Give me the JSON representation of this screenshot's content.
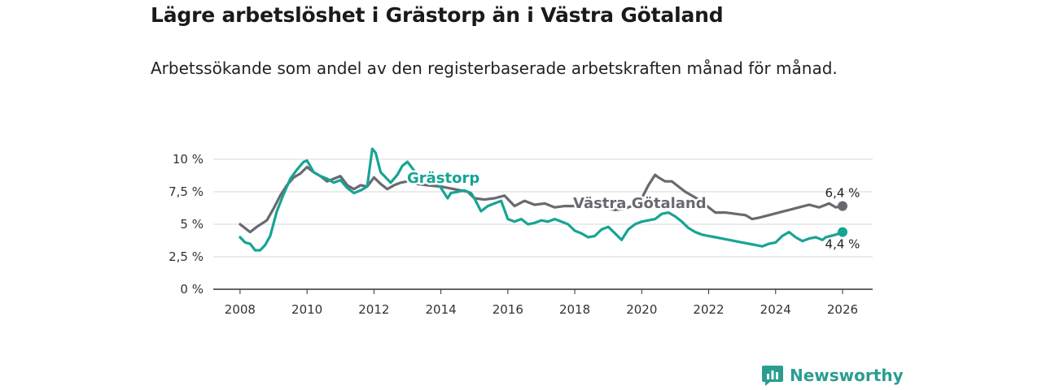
{
  "title": "Lägre arbetslöshet i Grästorp än i Västra Götaland",
  "subtitle": "Arbetssökande som andel av den registerbaserade arbetskraften månad för månad.",
  "brand": "Newsworthy",
  "colors": {
    "grastorp": "#17a494",
    "vg": "#6b6870",
    "grid": "#d9d9d9",
    "axis": "#333333",
    "brand": "#2a9d8f"
  },
  "chart_data": {
    "type": "line",
    "title": "Lägre arbetslöshet i Grästorp än i Västra Götaland",
    "xlabel": "",
    "ylabel": "",
    "xlim": [
      2007.2,
      2026.9
    ],
    "ylim": [
      0,
      10
    ],
    "x_ticks": [
      2008,
      2010,
      2012,
      2014,
      2016,
      2018,
      2020,
      2022,
      2024,
      2026
    ],
    "y_ticks": [
      0,
      2.5,
      5,
      7.5,
      10
    ],
    "y_tick_labels": [
      "0 %",
      "2,5 %",
      "5 %",
      "7,5 %",
      "10 %"
    ],
    "grid": true,
    "series": [
      {
        "name": "Västra Götaland",
        "label": "Västra Götaland",
        "end_label": "6,4 %",
        "end_x": 2026.0,
        "end_y": 6.4,
        "x": [
          2008.0,
          2008.3,
          2008.5,
          2008.8,
          2009.0,
          2009.2,
          2009.4,
          2009.6,
          2009.8,
          2010.0,
          2010.2,
          2010.4,
          2010.6,
          2010.8,
          2011.0,
          2011.2,
          2011.4,
          2011.6,
          2011.8,
          2012.0,
          2012.2,
          2012.4,
          2012.6,
          2012.8,
          2013.0,
          2013.3,
          2013.6,
          2014.0,
          2014.4,
          2014.8,
          2015.0,
          2015.3,
          2015.6,
          2015.9,
          2016.2,
          2016.5,
          2016.8,
          2017.1,
          2017.4,
          2017.7,
          2018.0,
          2018.3,
          2018.6,
          2018.9,
          2019.2,
          2019.5,
          2019.8,
          2020.0,
          2020.2,
          2020.4,
          2020.5,
          2020.7,
          2020.9,
          2021.1,
          2021.3,
          2021.5,
          2021.7,
          2021.9,
          2022.2,
          2022.5,
          2022.8,
          2023.1,
          2023.3,
          2023.5,
          2023.8,
          2024.1,
          2024.4,
          2024.7,
          2025.0,
          2025.3,
          2025.6,
          2025.8,
          2026.0
        ],
        "values": [
          5.0,
          4.4,
          4.8,
          5.3,
          6.2,
          7.2,
          8.0,
          8.6,
          8.9,
          9.4,
          9.0,
          8.7,
          8.3,
          8.5,
          8.7,
          8.0,
          7.7,
          8.0,
          7.9,
          8.6,
          8.1,
          7.7,
          8.0,
          8.2,
          8.3,
          8.1,
          8.0,
          7.9,
          7.7,
          7.5,
          7.0,
          6.9,
          7.0,
          7.2,
          6.4,
          6.8,
          6.5,
          6.6,
          6.3,
          6.4,
          6.4,
          6.5,
          6.3,
          6.3,
          6.1,
          6.2,
          6.5,
          7.0,
          8.0,
          8.8,
          8.6,
          8.3,
          8.3,
          7.9,
          7.5,
          7.2,
          6.9,
          6.5,
          5.9,
          5.9,
          5.8,
          5.7,
          5.4,
          5.5,
          5.7,
          5.9,
          6.1,
          6.3,
          6.5,
          6.3,
          6.6,
          6.3,
          6.4
        ]
      },
      {
        "name": "Grästorp",
        "label": "Grästorp",
        "end_label": "4,4 %",
        "end_x": 2026.0,
        "end_y": 4.4,
        "x": [
          2008.0,
          2008.15,
          2008.3,
          2008.45,
          2008.6,
          2008.75,
          2008.9,
          2009.1,
          2009.3,
          2009.5,
          2009.7,
          2009.9,
          2010.0,
          2010.2,
          2010.4,
          2010.6,
          2010.8,
          2011.0,
          2011.2,
          2011.4,
          2011.6,
          2011.8,
          2011.95,
          2012.05,
          2012.2,
          2012.35,
          2012.5,
          2012.7,
          2012.85,
          2013.0,
          2013.15,
          2013.3,
          2013.5,
          2013.7,
          2013.85,
          2014.0,
          2014.2,
          2014.3,
          2014.5,
          2014.7,
          2014.9,
          2015.0,
          2015.2,
          2015.4,
          2015.6,
          2015.8,
          2016.0,
          2016.2,
          2016.4,
          2016.6,
          2016.8,
          2017.0,
          2017.2,
          2017.4,
          2017.6,
          2017.8,
          2018.0,
          2018.2,
          2018.4,
          2018.6,
          2018.8,
          2019.0,
          2019.2,
          2019.4,
          2019.6,
          2019.8,
          2020.0,
          2020.2,
          2020.4,
          2020.6,
          2020.8,
          2021.0,
          2021.2,
          2021.4,
          2021.6,
          2021.8,
          2022.0,
          2022.2,
          2022.4,
          2022.6,
          2022.8,
          2023.0,
          2023.2,
          2023.4,
          2023.6,
          2023.8,
          2024.0,
          2024.2,
          2024.4,
          2024.6,
          2024.8,
          2025.0,
          2025.2,
          2025.4,
          2025.5,
          2025.8,
          2026.0
        ],
        "values": [
          4.0,
          3.6,
          3.5,
          3.0,
          3.0,
          3.4,
          4.1,
          6.0,
          7.3,
          8.5,
          9.2,
          9.8,
          9.9,
          9.0,
          8.7,
          8.5,
          8.2,
          8.4,
          7.8,
          7.4,
          7.6,
          7.9,
          10.8,
          10.5,
          9.0,
          8.6,
          8.2,
          8.8,
          9.5,
          9.8,
          9.3,
          8.8,
          8.4,
          8.1,
          8.3,
          7.8,
          7.0,
          7.4,
          7.5,
          7.6,
          7.4,
          7.0,
          6.0,
          6.4,
          6.6,
          6.8,
          5.4,
          5.2,
          5.4,
          5.0,
          5.1,
          5.3,
          5.2,
          5.4,
          5.2,
          5.0,
          4.5,
          4.3,
          4.0,
          4.1,
          4.6,
          4.8,
          4.3,
          3.8,
          4.6,
          5.0,
          5.2,
          5.3,
          5.4,
          5.8,
          5.9,
          5.6,
          5.2,
          4.7,
          4.4,
          4.2,
          4.1,
          4.0,
          3.9,
          3.8,
          3.7,
          3.6,
          3.5,
          3.4,
          3.3,
          3.5,
          3.6,
          4.1,
          4.4,
          4.0,
          3.7,
          3.9,
          4.0,
          3.8,
          4.0,
          4.2,
          4.4
        ]
      }
    ]
  }
}
